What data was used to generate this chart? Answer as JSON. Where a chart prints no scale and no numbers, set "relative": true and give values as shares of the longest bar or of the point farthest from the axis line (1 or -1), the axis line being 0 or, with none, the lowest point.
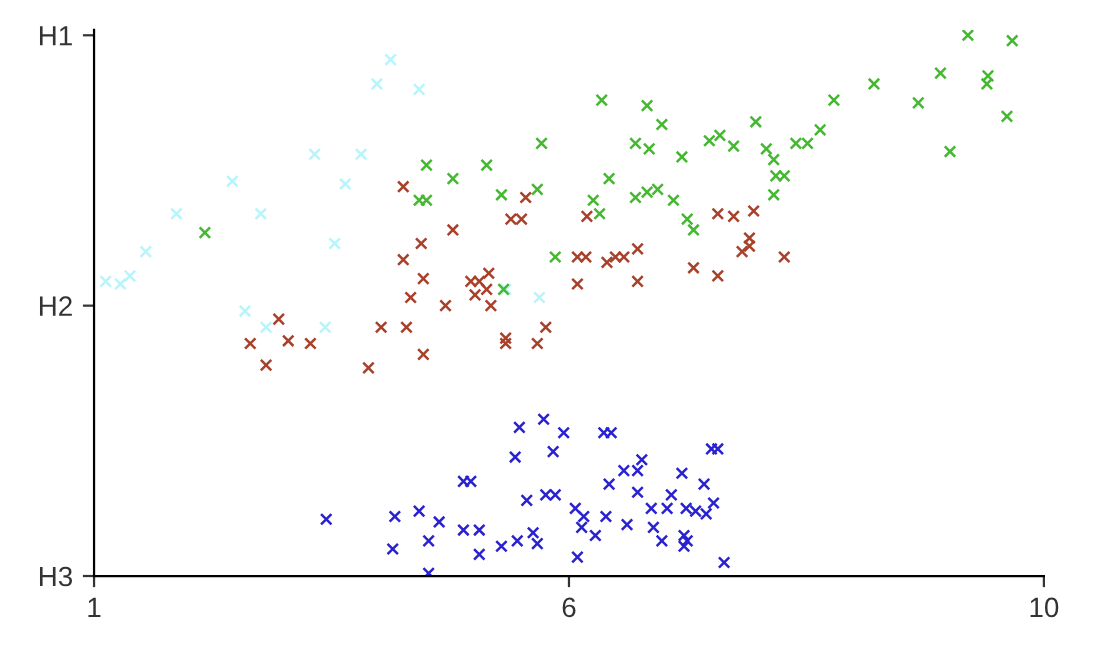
{
  "chart_data": {
    "type": "scatter",
    "marker": "cross",
    "grid": false,
    "relative": true,
    "xlim": [
      1,
      10
    ],
    "xticks": [
      1,
      {
        "value": 5.5,
        "label": "6"
      },
      10
    ],
    "annotations": [
      "H1",
      "H2",
      "H3"
    ],
    "series": [
      {
        "color": "#b8f4fc",
        "x": [
          3.81,
          4.08,
          3.68,
          3.09,
          3.53,
          2.31,
          3.38,
          1.78,
          2.58,
          1.49,
          3.28,
          1.11,
          1.25,
          1.34,
          2.43,
          2.63,
          3.19,
          4.9,
          5.22
        ],
        "values": [
          0.955,
          0.9,
          0.91,
          0.78,
          0.78,
          0.73,
          0.725,
          0.67,
          0.67,
          0.6,
          0.615,
          0.545,
          0.54,
          0.555,
          0.49,
          0.46,
          0.46,
          0.53,
          0.515
        ]
      },
      {
        "color": "#44b830",
        "x": [
          9.28,
          9.7,
          8.39,
          9.02,
          9.47,
          9.46,
          8.81,
          9.65,
          9.11,
          8.01,
          7.88,
          7.65,
          7.76,
          7.27,
          7.37,
          7.44,
          7.46,
          7.54,
          7.44,
          7.06,
          6.83,
          6.93,
          6.57,
          6.38,
          6.13,
          6.26,
          5.81,
          6.24,
          5.88,
          5.73,
          5.79,
          6.13,
          6.24,
          6.34,
          6.49,
          6.62,
          6.68,
          5.37,
          5.24,
          4.15,
          4.72,
          4.4,
          5.2,
          4.86,
          4.08,
          4.15,
          2.05,
          4.88
        ],
        "values": [
          1.0,
          0.99,
          0.91,
          0.93,
          0.925,
          0.91,
          0.875,
          0.85,
          0.785,
          0.88,
          0.825,
          0.8,
          0.8,
          0.84,
          0.79,
          0.77,
          0.74,
          0.74,
          0.705,
          0.795,
          0.805,
          0.815,
          0.775,
          0.835,
          0.8,
          0.79,
          0.88,
          0.87,
          0.735,
          0.695,
          0.67,
          0.7,
          0.71,
          0.715,
          0.695,
          0.66,
          0.64,
          0.59,
          0.8,
          0.76,
          0.76,
          0.735,
          0.715,
          0.705,
          0.695,
          0.695,
          0.635,
          0.53
        ]
      },
      {
        "color": "#a8402a",
        "x": [
          5.67,
          6.91,
          7.06,
          7.25,
          7.21,
          7.14,
          7.21,
          7.54,
          6.68,
          6.91,
          5.58,
          5.66,
          5.86,
          5.94,
          6.02,
          6.15,
          5.58,
          6.15,
          3.93,
          5.09,
          4.95,
          5.05,
          4.4,
          4.1,
          3.93,
          4.12,
          4.57,
          4.65,
          4.74,
          4.61,
          4.72,
          4.76,
          4.0,
          4.33,
          2.75,
          3.72,
          3.96,
          5.28,
          4.9,
          2.48,
          2.84,
          3.05,
          4.12,
          4.9,
          5.2,
          2.63,
          3.6
        ],
        "values": [
          0.665,
          0.67,
          0.665,
          0.675,
          0.625,
          0.6,
          0.61,
          0.59,
          0.57,
          0.555,
          0.59,
          0.59,
          0.58,
          0.59,
          0.59,
          0.605,
          0.54,
          0.545,
          0.72,
          0.7,
          0.66,
          0.66,
          0.64,
          0.615,
          0.585,
          0.55,
          0.545,
          0.545,
          0.56,
          0.52,
          0.53,
          0.5,
          0.515,
          0.5,
          0.475,
          0.46,
          0.46,
          0.46,
          0.44,
          0.43,
          0.435,
          0.43,
          0.41,
          0.43,
          0.43,
          0.39,
          0.385
        ]
      },
      {
        "color": "#2a22d0",
        "x": [
          3.2,
          3.85,
          4.08,
          4.27,
          3.83,
          4.17,
          4.17,
          4.5,
          4.65,
          4.65,
          4.86,
          5.01,
          5.16,
          5.2,
          4.5,
          4.57,
          4.99,
          5.03,
          5.26,
          5.1,
          5.28,
          5.45,
          5.83,
          5.9,
          5.35,
          5.37,
          6.85,
          6.91,
          6.57,
          6.02,
          6.15,
          6.19,
          5.88,
          6.15,
          6.78,
          6.47,
          5.56,
          5.64,
          5.62,
          5.85,
          5.75,
          6.05,
          6.28,
          6.43,
          6.61,
          6.7,
          6.8,
          6.87,
          6.3,
          6.38,
          6.59,
          6.62,
          6.59,
          5.58,
          6.97
        ],
        "values": [
          0.105,
          0.11,
          0.12,
          0.1,
          0.05,
          0.065,
          0.005,
          0.085,
          0.085,
          0.04,
          0.055,
          0.065,
          0.08,
          0.06,
          0.175,
          0.175,
          0.22,
          0.275,
          0.29,
          0.14,
          0.15,
          0.265,
          0.265,
          0.265,
          0.23,
          0.15,
          0.235,
          0.235,
          0.19,
          0.195,
          0.195,
          0.215,
          0.17,
          0.155,
          0.17,
          0.15,
          0.125,
          0.11,
          0.09,
          0.11,
          0.075,
          0.095,
          0.125,
          0.125,
          0.125,
          0.12,
          0.115,
          0.135,
          0.09,
          0.065,
          0.075,
          0.065,
          0.055,
          0.035,
          0.025
        ]
      }
    ]
  }
}
